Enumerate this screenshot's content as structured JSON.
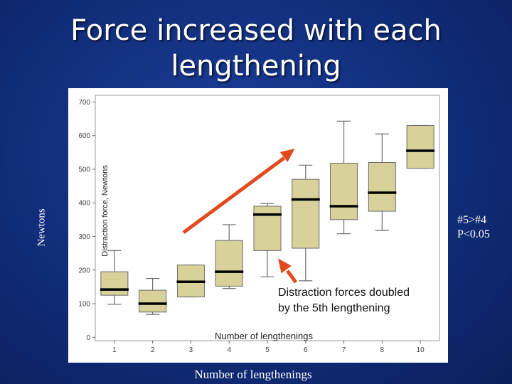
{
  "slide": {
    "title": "Force increased with each lengthening",
    "outer_ylabel": "Newtons",
    "outer_xlabel": "Number of lengthenings",
    "stat_note": [
      "#5>#4",
      "P<0.05"
    ]
  },
  "colors": {
    "background": "#13307f",
    "box_fill": "#d8d19a",
    "box_stroke": "#6b6b6b",
    "median": "#000000",
    "arrow": "#e24a1c",
    "arrow_stroke": "#ffffff"
  },
  "chart_data": {
    "type": "box",
    "ylabel": "Distraction force, Newtons",
    "xlabel": "Number of lengthenings",
    "ylim": [
      -10,
      720
    ],
    "yticks": [
      0,
      100,
      200,
      300,
      400,
      500,
      600,
      700
    ],
    "categories": [
      "1",
      "2",
      "3",
      "4",
      "5",
      "6",
      "7",
      "8",
      "10"
    ],
    "boxes": [
      {
        "min": 98,
        "q1": 125,
        "median": 142,
        "q3": 195,
        "max": 258
      },
      {
        "min": 68,
        "q1": 75,
        "median": 100,
        "q3": 140,
        "max": 175
      },
      {
        "min": 120,
        "q1": 120,
        "median": 165,
        "q3": 215,
        "max": 215
      },
      {
        "min": 145,
        "q1": 152,
        "median": 195,
        "q3": 288,
        "max": 335
      },
      {
        "min": 180,
        "q1": 258,
        "median": 365,
        "q3": 390,
        "max": 398
      },
      {
        "min": 168,
        "q1": 265,
        "median": 410,
        "q3": 470,
        "max": 512
      },
      {
        "min": 308,
        "q1": 350,
        "median": 390,
        "q3": 518,
        "max": 643
      },
      {
        "min": 318,
        "q1": 375,
        "median": 430,
        "q3": 520,
        "max": 605
      },
      {
        "min": 503,
        "q1": 503,
        "median": 555,
        "q3": 630,
        "max": 630
      }
    ],
    "annotations": [
      "Distraction forces doubled",
      "by the 5th lengthening"
    ]
  }
}
